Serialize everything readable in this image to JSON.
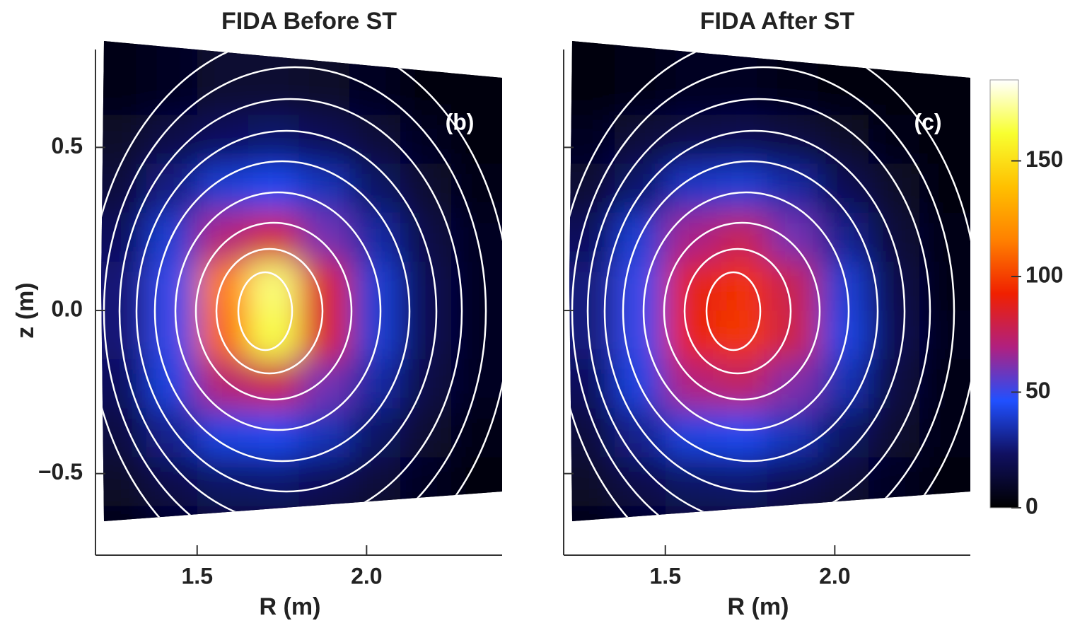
{
  "chart_data": [
    {
      "type": "heatmap",
      "title": "FIDA Before ST",
      "panel_label": "(b)",
      "xlabel": "R (m)",
      "ylabel": "z (m)",
      "xlim": [
        1.2,
        2.4
      ],
      "ylim": [
        -0.75,
        0.8
      ],
      "xticks": [
        1.5,
        {
          "value": 2,
          "label": "2.0"
        }
      ],
      "yticks": [
        0.5,
        {
          "value": 0,
          "label": "0.0"
        },
        {
          "value": -0.5,
          "label": "−0.5"
        }
      ],
      "x": [
        1.275,
        1.425,
        1.575,
        1.725,
        1.875,
        2.025,
        2.175,
        2.325
      ],
      "y": [
        0.675,
        0.525,
        0.375,
        0.225,
        0.075,
        -0.075,
        -0.225,
        -0.375,
        -0.525,
        -0.675
      ],
      "values": [
        [
          5,
          8,
          12,
          12,
          10,
          8,
          4,
          3
        ],
        [
          10,
          17,
          23,
          25,
          21,
          14,
          8,
          4
        ],
        [
          15,
          28,
          40,
          44,
          36,
          24,
          12,
          5
        ],
        [
          22,
          40,
          70,
          82,
          60,
          33,
          17,
          8
        ],
        [
          26,
          50,
          115,
          170,
          85,
          40,
          20,
          8
        ],
        [
          26,
          50,
          110,
          165,
          85,
          40,
          20,
          8
        ],
        [
          22,
          42,
          72,
          80,
          60,
          33,
          17,
          8
        ],
        [
          16,
          30,
          42,
          44,
          36,
          24,
          12,
          6
        ],
        [
          10,
          18,
          24,
          25,
          21,
          14,
          8,
          4
        ],
        [
          6,
          9,
          12,
          12,
          10,
          8,
          5,
          3
        ]
      ],
      "clim": [
        0,
        185
      ],
      "colormap": [
        "#000000",
        "#101060",
        "#2050ff",
        "#b02080",
        "#f02000",
        "#ff8000",
        "#ffc000",
        "#f8ff30",
        "#ffffff"
      ]
    },
    {
      "type": "heatmap",
      "title": "FIDA After ST",
      "panel_label": "(c)",
      "xlabel": "R (m)",
      "xlim": [
        1.2,
        2.4
      ],
      "ylim": [
        -0.75,
        0.8
      ],
      "xticks": [
        1.5,
        {
          "value": 2,
          "label": "2.0"
        }
      ],
      "yticks": [
        0.5,
        0,
        -0.5
      ],
      "x": [
        1.275,
        1.425,
        1.575,
        1.725,
        1.875,
        2.025,
        2.175,
        2.325
      ],
      "y": [
        0.675,
        0.525,
        0.375,
        0.225,
        0.075,
        -0.075,
        -0.225,
        -0.375,
        -0.525,
        -0.675
      ],
      "values": [
        [
          4,
          6,
          8,
          8,
          6,
          4,
          3,
          2
        ],
        [
          8,
          14,
          18,
          20,
          16,
          10,
          6,
          3
        ],
        [
          13,
          25,
          38,
          40,
          33,
          20,
          10,
          4
        ],
        [
          22,
          40,
          68,
          77,
          60,
          30,
          14,
          5
        ],
        [
          27,
          50,
          88,
          97,
          78,
          40,
          18,
          6
        ],
        [
          27,
          50,
          90,
          98,
          80,
          42,
          20,
          7
        ],
        [
          22,
          42,
          70,
          75,
          62,
          35,
          16,
          6
        ],
        [
          15,
          30,
          42,
          44,
          36,
          24,
          12,
          5
        ],
        [
          10,
          18,
          24,
          25,
          20,
          14,
          8,
          4
        ],
        [
          6,
          9,
          12,
          12,
          10,
          8,
          5,
          3
        ]
      ],
      "clim": [
        0,
        185
      ],
      "colormap": [
        "#000000",
        "#101060",
        "#2050ff",
        "#b02080",
        "#f02000",
        "#ff8000",
        "#ffc000",
        "#f8ff30",
        "#ffffff"
      ],
      "colorbar_ticks": [
        0,
        50,
        100,
        150
      ]
    }
  ]
}
